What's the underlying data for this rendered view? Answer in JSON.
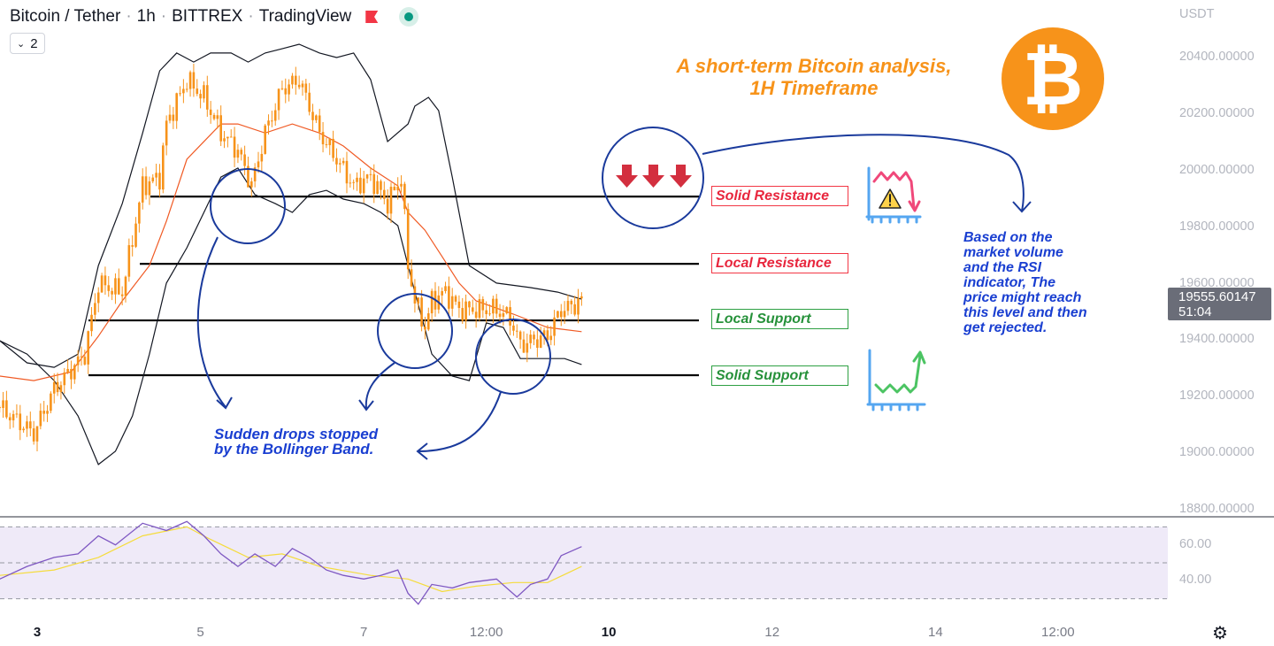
{
  "header": {
    "symbol": "Bitcoin / Tether",
    "interval": "1h",
    "exchange": "BITTREX",
    "source": "TradingView",
    "collapse_count": "2"
  },
  "price_axis": {
    "currency": "USDT",
    "last_price": "19555.60147",
    "countdown": "51:04"
  },
  "annotations": {
    "title_line1": "A short-term Bitcoin analysis,",
    "title_line2": "1H Timeframe",
    "solid_resistance": "Solid Resistance",
    "local_resistance": "Local Resistance",
    "local_support": "Local Support",
    "solid_support": "Solid Support",
    "drops_line1": "Sudden drops stopped",
    "drops_line2": "by the Bollinger Band.",
    "rsi_note": [
      "Based on the",
      "market volume",
      "and the RSI",
      "indicator, The",
      "price might reach",
      "this level and then",
      "get rejected."
    ],
    "logo_symbol": "₿"
  },
  "colors": {
    "candle": "#f7931a",
    "bands": "#131722",
    "ema": "#f05a24",
    "rsi": "#7e57c2",
    "rsi_ma": "#f5dc3c",
    "circle": "#1a3a9c"
  },
  "chart_data": {
    "type": "candlestick",
    "title": "Bitcoin / Tether 1h",
    "x_unit": "hours since day 3 00:00",
    "ylim": [
      18800,
      20500
    ],
    "y_ticks": [
      "20400.00000",
      "20200.00000",
      "20000.00000",
      "19800.00000",
      "19600.00000",
      "19400.00000",
      "19200.00000",
      "19000.00000",
      "18800.00000"
    ],
    "y_tick_values": [
      20400,
      20200,
      20000,
      19800,
      19600,
      19400,
      19200,
      19000,
      18800
    ],
    "x_ticks": [
      {
        "label": "3",
        "h": 0,
        "bold": true
      },
      {
        "label": "5",
        "h": 48
      },
      {
        "label": "7",
        "h": 96
      },
      {
        "label": "12:00",
        "h": 132
      },
      {
        "label": "10",
        "h": 168,
        "bold": true
      },
      {
        "label": "12",
        "h": 216
      },
      {
        "label": "14",
        "h": 264
      },
      {
        "label": "12:00",
        "h": 300
      }
    ],
    "close": [
      [
        -11,
        19163
      ],
      [
        -1,
        19070
      ],
      [
        5,
        19226
      ],
      [
        14,
        19350
      ],
      [
        18,
        19600
      ],
      [
        25,
        19570
      ],
      [
        31,
        19946
      ],
      [
        36,
        19977
      ],
      [
        38,
        20165
      ],
      [
        44,
        20320
      ],
      [
        49,
        20260
      ],
      [
        54,
        20134
      ],
      [
        59,
        20070
      ],
      [
        63,
        19946
      ],
      [
        67,
        20134
      ],
      [
        72,
        20290
      ],
      [
        77,
        20320
      ],
      [
        83,
        20134
      ],
      [
        88,
        20040
      ],
      [
        93,
        19946
      ],
      [
        98,
        19977
      ],
      [
        103,
        19883
      ],
      [
        107,
        19977
      ],
      [
        109,
        19665
      ],
      [
        111,
        19540
      ],
      [
        114,
        19445
      ],
      [
        116,
        19540
      ],
      [
        120,
        19570
      ],
      [
        124,
        19508
      ],
      [
        129,
        19508
      ],
      [
        135,
        19508
      ],
      [
        139,
        19477
      ],
      [
        142,
        19383
      ],
      [
        146,
        19400
      ],
      [
        150,
        19414
      ],
      [
        154,
        19508
      ],
      [
        158,
        19523
      ],
      [
        160,
        19555
      ]
    ],
    "bb_upper": [
      [
        -11,
        19398
      ],
      [
        -3,
        19320
      ],
      [
        5,
        19304
      ],
      [
        12,
        19351
      ],
      [
        18,
        19664
      ],
      [
        25,
        19883
      ],
      [
        31,
        20133
      ],
      [
        36,
        20353
      ],
      [
        41,
        20416
      ],
      [
        46,
        20384
      ],
      [
        51,
        20416
      ],
      [
        57,
        20416
      ],
      [
        62,
        20384
      ],
      [
        67,
        20416
      ],
      [
        72,
        20431
      ],
      [
        77,
        20447
      ],
      [
        83,
        20416
      ],
      [
        88,
        20400
      ],
      [
        93,
        20416
      ],
      [
        98,
        20322
      ],
      [
        103,
        20103
      ],
      [
        109,
        20165
      ],
      [
        111,
        20228
      ],
      [
        115,
        20259
      ],
      [
        118,
        20212
      ],
      [
        122,
        19977
      ],
      [
        127,
        19664
      ],
      [
        135,
        19602
      ],
      [
        145,
        19586
      ],
      [
        153,
        19570
      ],
      [
        160,
        19545
      ]
    ],
    "bb_lower": [
      [
        -11,
        19398
      ],
      [
        -3,
        19351
      ],
      [
        5,
        19257
      ],
      [
        12,
        19132
      ],
      [
        18,
        18960
      ],
      [
        23,
        19007
      ],
      [
        28,
        19132
      ],
      [
        33,
        19351
      ],
      [
        38,
        19602
      ],
      [
        44,
        19727
      ],
      [
        49,
        19852
      ],
      [
        54,
        19977
      ],
      [
        59,
        20009
      ],
      [
        64,
        19915
      ],
      [
        70,
        19883
      ],
      [
        75,
        19852
      ],
      [
        80,
        19915
      ],
      [
        85,
        19930
      ],
      [
        90,
        19899
      ],
      [
        96,
        19883
      ],
      [
        101,
        19852
      ],
      [
        106,
        19805
      ],
      [
        111,
        19570
      ],
      [
        116,
        19351
      ],
      [
        122,
        19273
      ],
      [
        127,
        19257
      ],
      [
        132,
        19461
      ],
      [
        137,
        19445
      ],
      [
        142,
        19335
      ],
      [
        148,
        19335
      ],
      [
        155,
        19335
      ],
      [
        160,
        19314
      ]
    ],
    "ema": [
      [
        -11,
        19273
      ],
      [
        -1,
        19257
      ],
      [
        10,
        19288
      ],
      [
        18,
        19414
      ],
      [
        25,
        19539
      ],
      [
        33,
        19664
      ],
      [
        38,
        19821
      ],
      [
        44,
        20040
      ],
      [
        49,
        20103
      ],
      [
        54,
        20165
      ],
      [
        59,
        20165
      ],
      [
        67,
        20133
      ],
      [
        75,
        20165
      ],
      [
        83,
        20133
      ],
      [
        90,
        20087
      ],
      [
        98,
        20009
      ],
      [
        106,
        19946
      ],
      [
        109,
        19852
      ],
      [
        114,
        19789
      ],
      [
        119,
        19696
      ],
      [
        124,
        19602
      ],
      [
        129,
        19539
      ],
      [
        140,
        19492
      ],
      [
        150,
        19445
      ],
      [
        160,
        19430
      ]
    ],
    "levels": [
      {
        "name": "Solid Resistance",
        "price": 19908
      },
      {
        "name": "Local Resistance",
        "price": 19670
      },
      {
        "name": "Local Support",
        "price": 19470
      },
      {
        "name": "Solid Support",
        "price": 19276
      }
    ],
    "rsi": {
      "ylim": [
        25,
        75
      ],
      "y_ticks": [
        "60.00",
        "40.00"
      ],
      "y_tick_values": [
        60,
        40
      ],
      "bands": [
        30,
        50,
        70
      ],
      "values": [
        [
          -11,
          41
        ],
        [
          -3,
          48
        ],
        [
          5,
          53
        ],
        [
          12,
          55
        ],
        [
          18,
          65
        ],
        [
          23,
          60
        ],
        [
          31,
          72
        ],
        [
          38,
          68
        ],
        [
          44,
          73
        ],
        [
          49,
          65
        ],
        [
          54,
          55
        ],
        [
          59,
          48
        ],
        [
          64,
          55
        ],
        [
          70,
          48
        ],
        [
          75,
          58
        ],
        [
          80,
          53
        ],
        [
          85,
          46
        ],
        [
          90,
          43
        ],
        [
          96,
          41
        ],
        [
          101,
          43
        ],
        [
          106,
          46
        ],
        [
          109,
          33
        ],
        [
          112,
          27
        ],
        [
          116,
          38
        ],
        [
          122,
          36
        ],
        [
          127,
          39
        ],
        [
          135,
          41
        ],
        [
          141,
          31
        ],
        [
          145,
          38
        ],
        [
          150,
          41
        ],
        [
          154,
          54
        ],
        [
          160,
          59
        ]
      ],
      "ma": [
        [
          -11,
          43
        ],
        [
          5,
          46
        ],
        [
          18,
          53
        ],
        [
          31,
          65
        ],
        [
          44,
          70
        ],
        [
          51,
          63
        ],
        [
          62,
          53
        ],
        [
          72,
          55
        ],
        [
          83,
          48
        ],
        [
          98,
          43
        ],
        [
          109,
          41
        ],
        [
          119,
          34
        ],
        [
          129,
          37
        ],
        [
          140,
          39
        ],
        [
          150,
          39
        ],
        [
          160,
          48
        ]
      ]
    }
  }
}
